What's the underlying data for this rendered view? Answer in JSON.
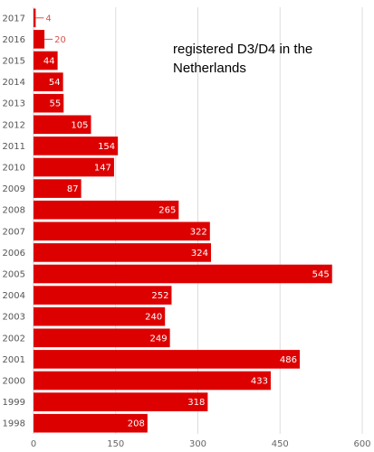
{
  "chart_data": {
    "type": "bar",
    "orientation": "horizontal",
    "title": "registered D3/D4 in the Netherlands",
    "categories": [
      "2017",
      "2016",
      "2015",
      "2014",
      "2013",
      "2012",
      "2011",
      "2010",
      "2009",
      "2008",
      "2007",
      "2006",
      "2005",
      "2004",
      "2003",
      "2002",
      "2001",
      "2000",
      "1999",
      "1998"
    ],
    "values": [
      4,
      20,
      44,
      54,
      55,
      105,
      154,
      147,
      87,
      265,
      322,
      324,
      545,
      252,
      240,
      249,
      486,
      433,
      318,
      208
    ],
    "xlim": [
      0,
      600
    ],
    "xticks": [
      0,
      150,
      300,
      450,
      600
    ],
    "grid": true,
    "colors": {
      "bar": "#dd0000",
      "grid": "#dddddd",
      "outside_label": "#d9534f"
    }
  }
}
